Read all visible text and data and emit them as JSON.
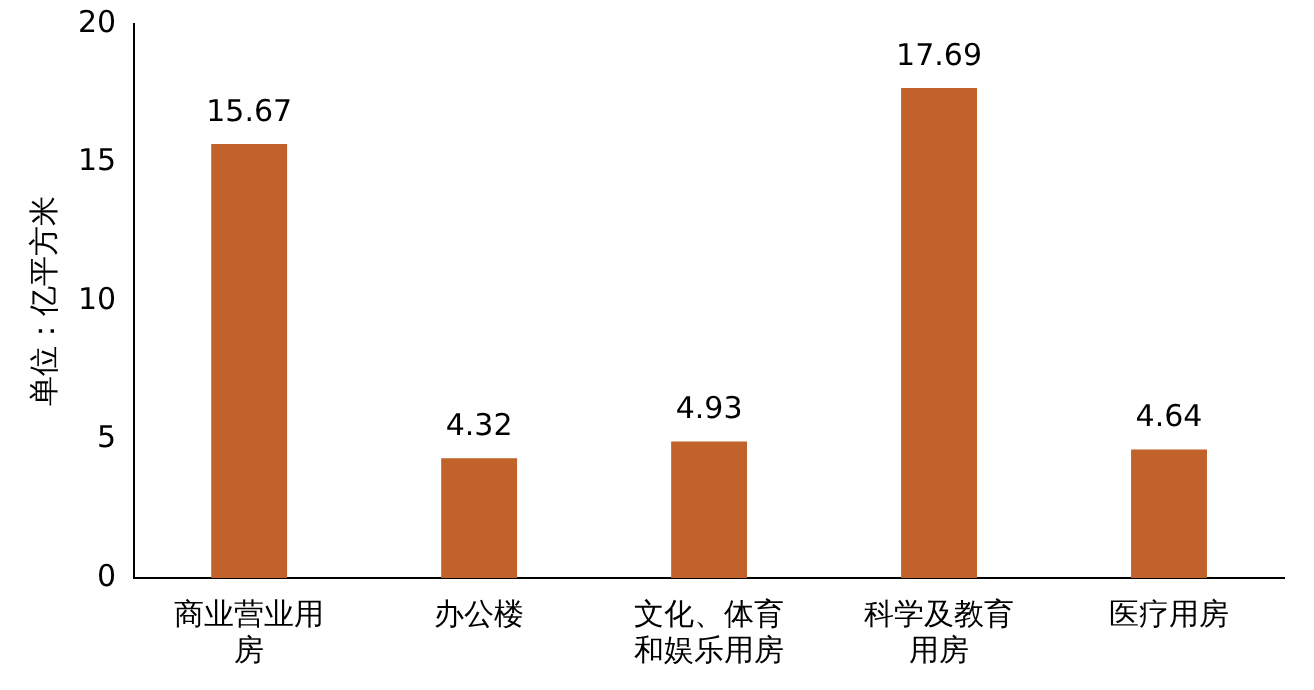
{
  "chart_data": {
    "type": "bar",
    "ylabel": "单位：亿平方米",
    "categories": [
      "商业营业用房",
      "办公楼",
      "文化、体育和娱乐用房",
      "科学及教育用房",
      "医疗用房"
    ],
    "values": [
      15.67,
      4.32,
      4.93,
      17.69,
      4.64
    ],
    "color": "#c0622a",
    "ylim": [
      0,
      20
    ],
    "yticks": [
      0,
      5,
      10,
      15,
      20
    ],
    "grid": false,
    "data_labels": true
  }
}
